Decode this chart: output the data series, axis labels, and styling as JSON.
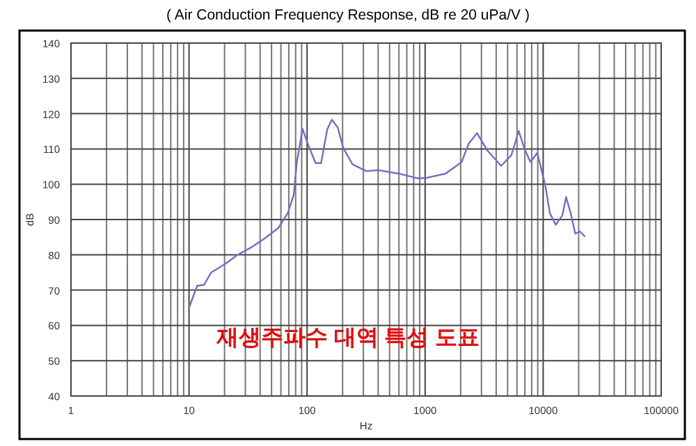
{
  "chart_data": {
    "type": "line",
    "title": "( Air Conduction Frequency Response,  dB re 20 uPa/V )",
    "xlabel": "Hz",
    "ylabel": "dB",
    "annotations": [
      "재생주파수 대역 특성 도표"
    ],
    "log": "x",
    "grid": true,
    "marker": "none",
    "line_style": "solid",
    "xlim": [
      1,
      100000
    ],
    "xticks": [
      1,
      10,
      100,
      1000,
      10000,
      100000
    ],
    "ylim": [
      40,
      140
    ],
    "yticks": [
      40,
      50,
      60,
      70,
      80,
      90,
      100,
      110,
      120,
      130,
      140
    ],
    "series": [
      {
        "color": "#6e70c0",
        "x": [
          10,
          11.7,
          13.4,
          15.4,
          20.2,
          25.3,
          33.2,
          43.5,
          57.1,
          68.5,
          77.1,
          82,
          91.5,
          103,
          118,
          131.5,
          148,
          162,
          182,
          203,
          243,
          319,
          400,
          601,
          863,
          989,
          1486,
          2042,
          2339,
          2754,
          3361,
          4406,
          5376,
          6208,
          6920,
          7798,
          8921,
          10420,
          11400,
          12800,
          14550,
          15640,
          17100,
          18700,
          20500,
          22400
        ],
        "values": [
          65,
          71.2,
          71.5,
          75,
          77.4,
          79.8,
          82,
          84.6,
          87.6,
          91.8,
          97,
          106.3,
          115.7,
          110.9,
          106,
          106,
          115.5,
          118.3,
          116.1,
          110.2,
          105.6,
          103.7,
          104,
          103,
          101.7,
          101.7,
          103,
          106.3,
          111.5,
          114.5,
          109.6,
          105.2,
          108.2,
          115.1,
          110.2,
          106.3,
          108.9,
          99.7,
          91.8,
          88.5,
          91.2,
          96.4,
          91.8,
          86,
          86.6,
          85.3
        ]
      }
    ]
  }
}
